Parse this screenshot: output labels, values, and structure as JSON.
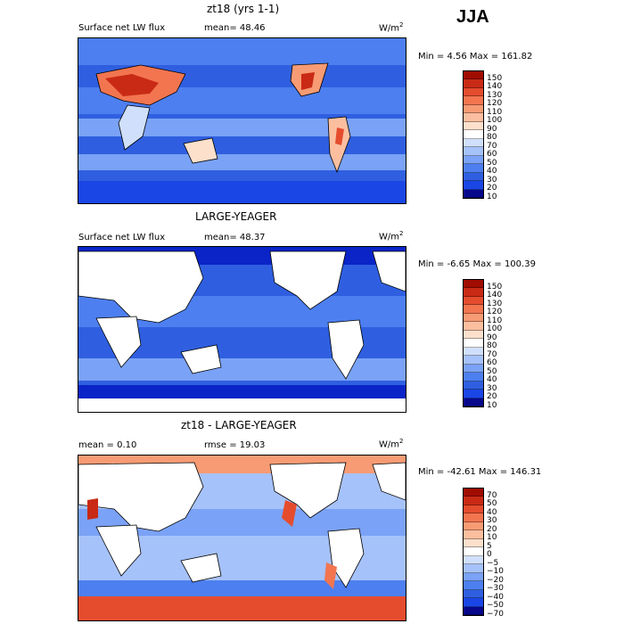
{
  "season": "JJA",
  "colors": {
    "levels_abs": [
      "#08088c",
      "#0a24c8",
      "#1a46e6",
      "#2f5fe0",
      "#4d7ff0",
      "#7aa2f6",
      "#a6c2fa",
      "#d0e0fc",
      "#ffffff",
      "#fde0cc",
      "#fbbfa0",
      "#f79b74",
      "#f27550",
      "#e54c2e",
      "#c92a15",
      "#a00c00"
    ],
    "levels_diff": [
      "#08088c",
      "#0a24c8",
      "#1a46e6",
      "#2f5fe0",
      "#4d7ff0",
      "#7aa2f6",
      "#a6c2fa",
      "#d0e0fc",
      "#ffffff",
      "#fde0cc",
      "#fbbfa0",
      "#f79b74",
      "#f27550",
      "#e54c2e",
      "#c92a15",
      "#a00c00"
    ],
    "land": "#ffffff",
    "ocean_base": "#2f5fe0"
  },
  "panels": [
    {
      "title": "zt18 (yrs 1-1)",
      "field": "Surface net LW flux",
      "stat1": "mean=  48.46",
      "units": "W/m",
      "units_sup": "2",
      "minmax": "Min =    4.56 Max = 161.82",
      "colorbar_labels": [
        "150",
        "140",
        "130",
        "120",
        "110",
        "100",
        "90",
        "80",
        "70",
        "60",
        "50",
        "40",
        "30",
        "20",
        "10"
      ]
    },
    {
      "title": "LARGE-YEAGER",
      "field": "Surface net LW flux",
      "stat1": "mean=  48.37",
      "units": "W/m",
      "units_sup": "2",
      "minmax": "Min =  -6.65 Max = 100.39",
      "colorbar_labels": [
        "150",
        "140",
        "130",
        "120",
        "110",
        "100",
        "90",
        "80",
        "70",
        "60",
        "50",
        "40",
        "30",
        "20",
        "10"
      ]
    },
    {
      "title": "zt18 - LARGE-YEAGER",
      "field": "mean =    0.10",
      "stat1": "rmse =  19.03",
      "units": "W/m",
      "units_sup": "2",
      "minmax": "Min = -42.61 Max = 146.31",
      "colorbar_labels": [
        "70",
        "50",
        "40",
        "30",
        "20",
        "10",
        "5",
        "0",
        "−5",
        "−10",
        "−20",
        "−30",
        "−40",
        "−50",
        "−70"
      ]
    }
  ]
}
